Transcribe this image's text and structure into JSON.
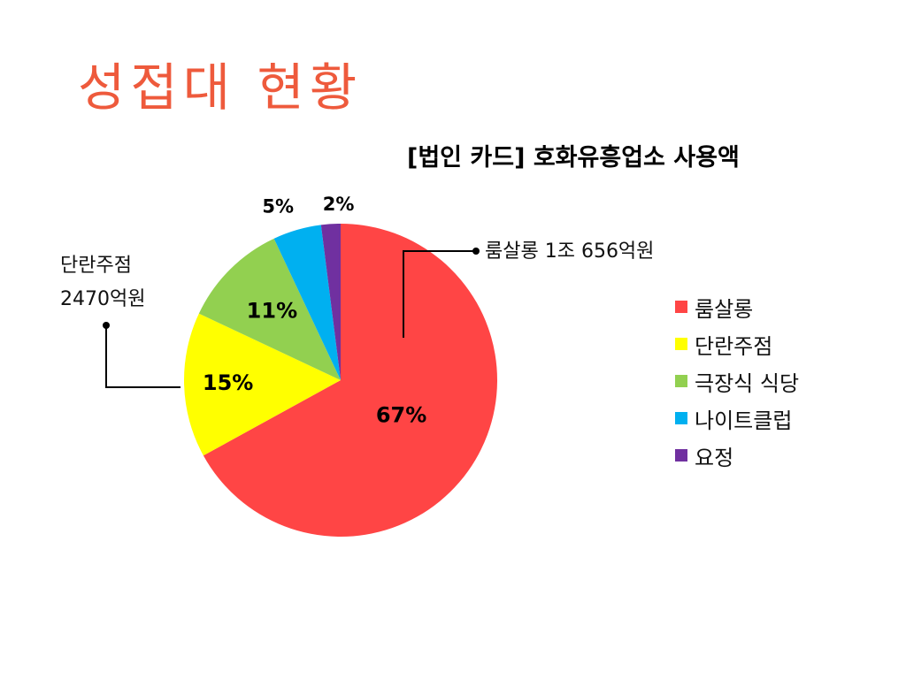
{
  "slide": {
    "title": "성접대 현황"
  },
  "chart_data": {
    "type": "pie",
    "title": "[법인 카드] 호화유흥업소 사용액",
    "slices": [
      {
        "name": "룸살롱",
        "value": 67,
        "label": "67%",
        "color": "#ff4545"
      },
      {
        "name": "단란주점",
        "value": 15,
        "label": "15%",
        "color": "#ffff00"
      },
      {
        "name": "극장식 식당",
        "value": 11,
        "label": "11%",
        "color": "#92d050"
      },
      {
        "name": "나이트클럽",
        "value": 5,
        "label": "5%",
        "color": "#00b0f0"
      },
      {
        "name": "요정",
        "value": 2,
        "label": "2%",
        "color": "#7030a0"
      }
    ],
    "legend_position": "right",
    "annotations": [
      {
        "target": "룸살롱",
        "text": "룸살롱 1조 656억원"
      },
      {
        "target": "단란주점",
        "line1": "단란주점",
        "line2": "2470억원"
      }
    ]
  }
}
